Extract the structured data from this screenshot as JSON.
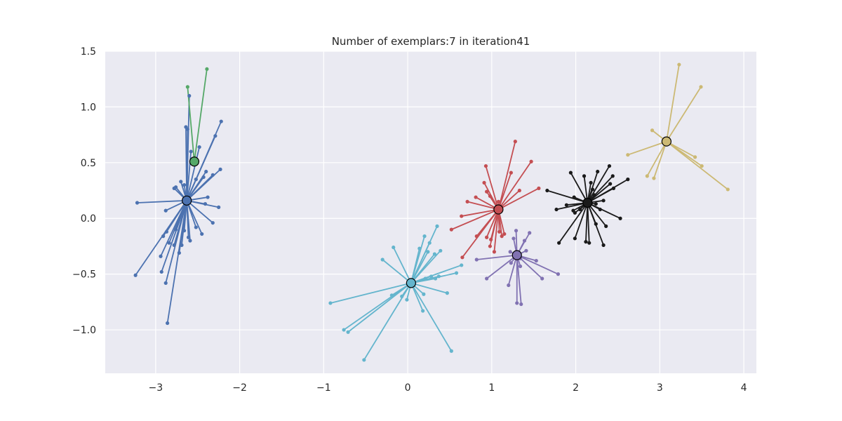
{
  "chart_data": {
    "type": "scatter",
    "title": "Number of exemplars:7 in iteration41",
    "xlabel": "",
    "ylabel": "",
    "xlim": [
      -3.6,
      4.15
    ],
    "ylim": [
      -1.39,
      1.5
    ],
    "xticks": [
      -3,
      -2,
      -1,
      0,
      1,
      2,
      3,
      4
    ],
    "xtick_labels": [
      "−3",
      "−2",
      "−1",
      "0",
      "1",
      "2",
      "3",
      "4"
    ],
    "yticks": [
      -1.0,
      -0.5,
      0.0,
      0.5,
      1.0,
      1.5
    ],
    "ytick_labels": [
      "−1.0",
      "−0.5",
      "0.0",
      "0.5",
      "1.0",
      "1.5"
    ],
    "grid": true,
    "legend": "none",
    "background": "#EAEAF2",
    "grid_color": "#FFFFFF",
    "clusters": [
      {
        "color": "#4C72B0",
        "exemplar": [
          -2.63,
          0.16
        ],
        "points": [
          [
            -2.64,
            0.82
          ],
          [
            -2.6,
            1.1
          ],
          [
            -2.62,
            0.8
          ],
          [
            -2.22,
            0.87
          ],
          [
            -2.29,
            0.74
          ],
          [
            -2.23,
            0.44
          ],
          [
            -2.4,
            0.42
          ],
          [
            -2.32,
            0.39
          ],
          [
            -2.43,
            0.37
          ],
          [
            -2.52,
            0.35
          ],
          [
            -2.48,
            0.64
          ],
          [
            -2.58,
            0.6
          ],
          [
            -2.7,
            0.33
          ],
          [
            -2.76,
            0.28
          ],
          [
            -2.78,
            0.27
          ],
          [
            -2.66,
            0.3
          ],
          [
            -3.22,
            0.14
          ],
          [
            -2.88,
            0.07
          ],
          [
            -2.25,
            0.1
          ],
          [
            -2.38,
            0.19
          ],
          [
            -2.41,
            0.13
          ],
          [
            -2.32,
            -0.04
          ],
          [
            -2.52,
            -0.08
          ],
          [
            -2.45,
            -0.14
          ],
          [
            -2.66,
            -0.11
          ],
          [
            -2.59,
            -0.2
          ],
          [
            -2.61,
            -0.17
          ],
          [
            -2.76,
            -0.1
          ],
          [
            -2.87,
            -0.12
          ],
          [
            -2.91,
            -0.16
          ],
          [
            -2.84,
            -0.22
          ],
          [
            -2.78,
            -0.24
          ],
          [
            -2.69,
            -0.24
          ],
          [
            -2.72,
            -0.31
          ],
          [
            -2.94,
            -0.34
          ],
          [
            -2.93,
            -0.48
          ],
          [
            -2.88,
            -0.58
          ],
          [
            -3.24,
            -0.51
          ],
          [
            -2.86,
            -0.94
          ]
        ]
      },
      {
        "color": "#55A868",
        "exemplar": [
          -2.54,
          0.51
        ],
        "points": [
          [
            -2.62,
            1.18
          ],
          [
            -2.39,
            1.34
          ]
        ]
      },
      {
        "color": "#64B5CD",
        "exemplar": [
          0.04,
          -0.58
        ],
        "points": [
          [
            0.35,
            -0.07
          ],
          [
            0.2,
            -0.16
          ],
          [
            0.26,
            -0.22
          ],
          [
            0.14,
            -0.27
          ],
          [
            -0.17,
            -0.26
          ],
          [
            0.24,
            -0.3
          ],
          [
            0.39,
            -0.29
          ],
          [
            0.32,
            -0.32
          ],
          [
            -0.3,
            -0.37
          ],
          [
            0.64,
            -0.42
          ],
          [
            0.58,
            -0.49
          ],
          [
            0.28,
            -0.52
          ],
          [
            0.21,
            -0.54
          ],
          [
            0.37,
            -0.52
          ],
          [
            0.33,
            -0.54
          ],
          [
            0.47,
            -0.67
          ],
          [
            0.19,
            -0.68
          ],
          [
            -0.19,
            -0.69
          ],
          [
            -0.07,
            -0.7
          ],
          [
            -0.01,
            -0.73
          ],
          [
            -0.92,
            -0.76
          ],
          [
            0.18,
            -0.83
          ],
          [
            -0.76,
            -1.0
          ],
          [
            -0.71,
            -1.02
          ],
          [
            0.52,
            -1.19
          ],
          [
            -0.52,
            -1.27
          ]
        ]
      },
      {
        "color": "#C44E52",
        "exemplar": [
          1.08,
          0.08
        ],
        "points": [
          [
            1.28,
            0.69
          ],
          [
            1.47,
            0.51
          ],
          [
            0.93,
            0.47
          ],
          [
            1.23,
            0.41
          ],
          [
            0.91,
            0.32
          ],
          [
            1.33,
            0.25
          ],
          [
            1.56,
            0.27
          ],
          [
            0.81,
            0.19
          ],
          [
            0.71,
            0.15
          ],
          [
            0.94,
            0.24
          ],
          [
            0.98,
            0.2
          ],
          [
            1.08,
            0.15
          ],
          [
            1.04,
            0.09
          ],
          [
            0.64,
            0.02
          ],
          [
            0.52,
            -0.1
          ],
          [
            0.82,
            -0.16
          ],
          [
            0.94,
            -0.17
          ],
          [
            0.99,
            -0.19
          ],
          [
            1.09,
            -0.12
          ],
          [
            1.15,
            -0.14
          ],
          [
            0.98,
            -0.25
          ],
          [
            1.03,
            -0.3
          ],
          [
            0.65,
            -0.35
          ],
          [
            1.12,
            -0.16
          ]
        ]
      },
      {
        "color": "#8172B2",
        "exemplar": [
          1.3,
          -0.33
        ],
        "points": [
          [
            1.29,
            -0.11
          ],
          [
            1.45,
            -0.13
          ],
          [
            1.26,
            -0.18
          ],
          [
            1.39,
            -0.2
          ],
          [
            1.41,
            -0.29
          ],
          [
            1.22,
            -0.3
          ],
          [
            1.34,
            -0.36
          ],
          [
            1.53,
            -0.38
          ],
          [
            0.82,
            -0.37
          ],
          [
            1.23,
            -0.4
          ],
          [
            1.34,
            -0.43
          ],
          [
            1.79,
            -0.5
          ],
          [
            0.94,
            -0.54
          ],
          [
            1.6,
            -0.54
          ],
          [
            1.2,
            -0.6
          ],
          [
            1.3,
            -0.76
          ],
          [
            1.35,
            -0.77
          ]
        ]
      },
      {
        "color": "#1A1A1A",
        "exemplar": [
          2.14,
          0.14
        ],
        "points": [
          [
            2.4,
            0.47
          ],
          [
            1.94,
            0.41
          ],
          [
            2.1,
            0.38
          ],
          [
            2.26,
            0.42
          ],
          [
            2.44,
            0.38
          ],
          [
            2.62,
            0.35
          ],
          [
            2.18,
            0.32
          ],
          [
            2.45,
            0.27
          ],
          [
            2.41,
            0.31
          ],
          [
            2.2,
            0.26
          ],
          [
            2.22,
            0.21
          ],
          [
            1.66,
            0.25
          ],
          [
            1.98,
            0.19
          ],
          [
            2.33,
            0.16
          ],
          [
            2.24,
            0.13
          ],
          [
            1.89,
            0.12
          ],
          [
            2.05,
            0.08
          ],
          [
            1.97,
            0.07
          ],
          [
            2.29,
            0.08
          ],
          [
            1.99,
            0.05
          ],
          [
            1.77,
            0.08
          ],
          [
            2.53,
            0.0
          ],
          [
            2.36,
            -0.07
          ],
          [
            2.24,
            -0.05
          ],
          [
            1.99,
            -0.18
          ],
          [
            2.12,
            -0.21
          ],
          [
            2.16,
            -0.22
          ],
          [
            1.8,
            -0.22
          ],
          [
            2.33,
            -0.24
          ]
        ]
      },
      {
        "color": "#CCB974",
        "exemplar": [
          3.08,
          0.69
        ],
        "points": [
          [
            3.23,
            1.38
          ],
          [
            3.49,
            1.18
          ],
          [
            2.91,
            0.79
          ],
          [
            3.42,
            0.55
          ],
          [
            2.62,
            0.57
          ],
          [
            3.5,
            0.47
          ],
          [
            2.85,
            0.38
          ],
          [
            2.93,
            0.36
          ],
          [
            3.81,
            0.26
          ]
        ]
      }
    ]
  }
}
